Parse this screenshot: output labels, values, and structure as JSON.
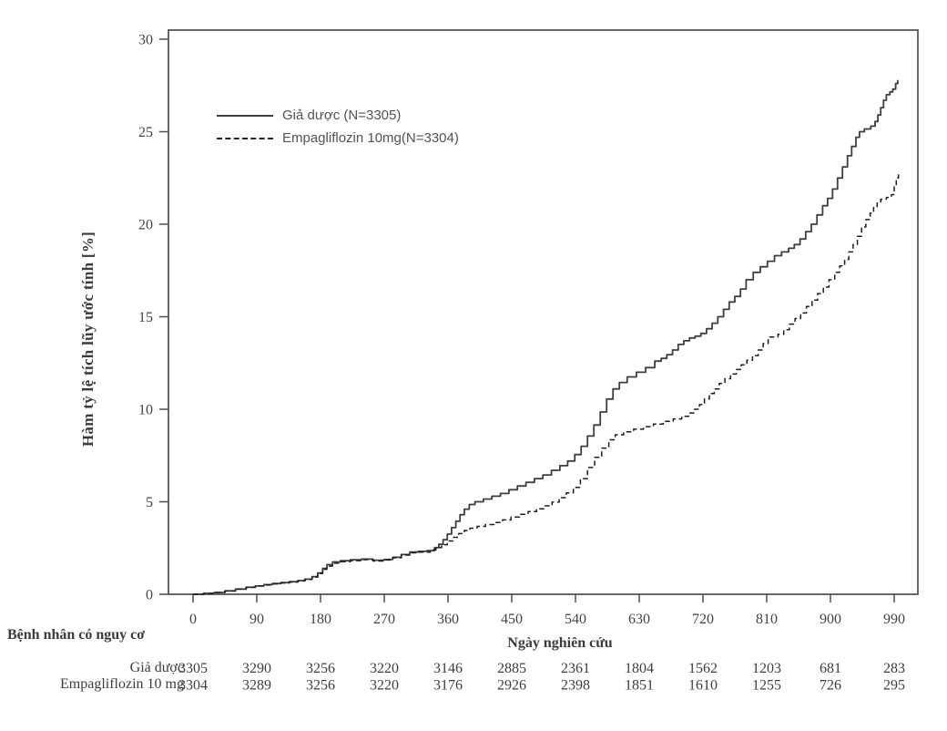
{
  "figure": {
    "background": "#ffffff",
    "axis_color": "#4e4e4e",
    "text_color": "#434343",
    "legend_text_color": "#525252"
  },
  "chart_data": {
    "type": "line",
    "subtype": "step-after (Kaplan-Meier estimated cumulative incidence)",
    "title": "",
    "xlabel": "Ngày nghiên cứu",
    "ylabel": "Hàm tỷ lệ tích lũy ước tính [%]",
    "xlim": [
      0,
      1023
    ],
    "ylim": [
      0,
      30.5
    ],
    "xticks": [
      0,
      90,
      180,
      270,
      360,
      450,
      540,
      630,
      720,
      810,
      900,
      990
    ],
    "yticks": [
      0,
      5,
      10,
      15,
      20,
      25,
      30
    ],
    "grid": false,
    "legend_position": "inside-upper-left",
    "series": [
      {
        "name": "Giả dược (N=3305)",
        "line": "solid",
        "color": "#3e3e3e",
        "points": [
          [
            0,
            0
          ],
          [
            15,
            0.05
          ],
          [
            30,
            0.1
          ],
          [
            45,
            0.18
          ],
          [
            60,
            0.28
          ],
          [
            75,
            0.38
          ],
          [
            88,
            0.45
          ],
          [
            100,
            0.52
          ],
          [
            112,
            0.58
          ],
          [
            124,
            0.63
          ],
          [
            136,
            0.68
          ],
          [
            148,
            0.74
          ],
          [
            158,
            0.82
          ],
          [
            168,
            0.95
          ],
          [
            176,
            1.15
          ],
          [
            183,
            1.4
          ],
          [
            189,
            1.6
          ],
          [
            197,
            1.75
          ],
          [
            208,
            1.82
          ],
          [
            222,
            1.86
          ],
          [
            238,
            1.9
          ],
          [
            254,
            1.84
          ],
          [
            270,
            1.88
          ],
          [
            282,
            2.0
          ],
          [
            294,
            2.15
          ],
          [
            306,
            2.28
          ],
          [
            318,
            2.32
          ],
          [
            330,
            2.36
          ],
          [
            341,
            2.52
          ],
          [
            347,
            2.7
          ],
          [
            353,
            2.95
          ],
          [
            359,
            3.25
          ],
          [
            365,
            3.6
          ],
          [
            371,
            3.95
          ],
          [
            377,
            4.3
          ],
          [
            383,
            4.6
          ],
          [
            390,
            4.85
          ],
          [
            398,
            5.0
          ],
          [
            410,
            5.15
          ],
          [
            422,
            5.3
          ],
          [
            434,
            5.45
          ],
          [
            446,
            5.65
          ],
          [
            458,
            5.85
          ],
          [
            470,
            6.05
          ],
          [
            482,
            6.25
          ],
          [
            494,
            6.45
          ],
          [
            506,
            6.7
          ],
          [
            518,
            6.95
          ],
          [
            529,
            7.2
          ],
          [
            539,
            7.55
          ],
          [
            548,
            8.0
          ],
          [
            557,
            8.55
          ],
          [
            566,
            9.15
          ],
          [
            575,
            9.85
          ],
          [
            584,
            10.55
          ],
          [
            593,
            11.1
          ],
          [
            602,
            11.45
          ],
          [
            613,
            11.75
          ],
          [
            626,
            12.0
          ],
          [
            639,
            12.25
          ],
          [
            652,
            12.6
          ],
          [
            661,
            12.75
          ],
          [
            669,
            12.95
          ],
          [
            677,
            13.2
          ],
          [
            685,
            13.5
          ],
          [
            693,
            13.7
          ],
          [
            701,
            13.85
          ],
          [
            709,
            13.95
          ],
          [
            717,
            14.1
          ],
          [
            725,
            14.35
          ],
          [
            733,
            14.65
          ],
          [
            741,
            15.0
          ],
          [
            749,
            15.4
          ],
          [
            757,
            15.8
          ],
          [
            765,
            16.1
          ],
          [
            773,
            16.5
          ],
          [
            781,
            17.0
          ],
          [
            791,
            17.4
          ],
          [
            801,
            17.7
          ],
          [
            811,
            18.0
          ],
          [
            821,
            18.3
          ],
          [
            831,
            18.5
          ],
          [
            841,
            18.7
          ],
          [
            849,
            18.9
          ],
          [
            857,
            19.2
          ],
          [
            865,
            19.6
          ],
          [
            873,
            20.0
          ],
          [
            881,
            20.5
          ],
          [
            889,
            21.0
          ],
          [
            896,
            21.4
          ],
          [
            903,
            21.9
          ],
          [
            910,
            22.5
          ],
          [
            917,
            23.1
          ],
          [
            924,
            23.7
          ],
          [
            930,
            24.2
          ],
          [
            936,
            24.7
          ],
          [
            941,
            25.0
          ],
          [
            948,
            25.15
          ],
          [
            957,
            25.3
          ],
          [
            963,
            25.55
          ],
          [
            967,
            25.9
          ],
          [
            971,
            26.3
          ],
          [
            975,
            26.7
          ],
          [
            979,
            27.0
          ],
          [
            984,
            27.15
          ],
          [
            988,
            27.3
          ],
          [
            992,
            27.6
          ],
          [
            995,
            27.8
          ]
        ]
      },
      {
        "name": "Empagliflozin 10mg(N=3304)",
        "line": "dashed",
        "color": "#1e1e1e",
        "points": [
          [
            0,
            0
          ],
          [
            15,
            0.05
          ],
          [
            30,
            0.1
          ],
          [
            45,
            0.18
          ],
          [
            60,
            0.28
          ],
          [
            75,
            0.38
          ],
          [
            88,
            0.45
          ],
          [
            100,
            0.5
          ],
          [
            112,
            0.56
          ],
          [
            124,
            0.61
          ],
          [
            136,
            0.66
          ],
          [
            148,
            0.72
          ],
          [
            158,
            0.8
          ],
          [
            168,
            0.93
          ],
          [
            176,
            1.12
          ],
          [
            183,
            1.35
          ],
          [
            189,
            1.52
          ],
          [
            197,
            1.68
          ],
          [
            208,
            1.76
          ],
          [
            222,
            1.82
          ],
          [
            238,
            1.87
          ],
          [
            254,
            1.8
          ],
          [
            270,
            1.85
          ],
          [
            282,
            1.97
          ],
          [
            294,
            2.12
          ],
          [
            306,
            2.24
          ],
          [
            318,
            2.28
          ],
          [
            335,
            2.4
          ],
          [
            343,
            2.52
          ],
          [
            351,
            2.68
          ],
          [
            359,
            2.88
          ],
          [
            367,
            3.08
          ],
          [
            375,
            3.28
          ],
          [
            383,
            3.45
          ],
          [
            391,
            3.57
          ],
          [
            401,
            3.67
          ],
          [
            413,
            3.77
          ],
          [
            425,
            3.88
          ],
          [
            437,
            4.02
          ],
          [
            449,
            4.17
          ],
          [
            461,
            4.32
          ],
          [
            473,
            4.47
          ],
          [
            485,
            4.62
          ],
          [
            497,
            4.78
          ],
          [
            507,
            4.98
          ],
          [
            517,
            5.22
          ],
          [
            527,
            5.48
          ],
          [
            537,
            5.78
          ],
          [
            547,
            6.25
          ],
          [
            557,
            6.85
          ],
          [
            567,
            7.4
          ],
          [
            577,
            7.9
          ],
          [
            587,
            8.35
          ],
          [
            596,
            8.62
          ],
          [
            608,
            8.78
          ],
          [
            622,
            8.92
          ],
          [
            636,
            9.06
          ],
          [
            650,
            9.2
          ],
          [
            664,
            9.35
          ],
          [
            678,
            9.48
          ],
          [
            690,
            9.62
          ],
          [
            700,
            9.8
          ],
          [
            708,
            10.0
          ],
          [
            715,
            10.25
          ],
          [
            722,
            10.55
          ],
          [
            729,
            10.85
          ],
          [
            736,
            11.1
          ],
          [
            743,
            11.4
          ],
          [
            751,
            11.65
          ],
          [
            759,
            11.9
          ],
          [
            767,
            12.15
          ],
          [
            774,
            12.4
          ],
          [
            782,
            12.65
          ],
          [
            790,
            12.9
          ],
          [
            798,
            13.2
          ],
          [
            805,
            13.55
          ],
          [
            812,
            13.9
          ],
          [
            826,
            14.05
          ],
          [
            834,
            14.3
          ],
          [
            842,
            14.6
          ],
          [
            850,
            14.9
          ],
          [
            858,
            15.2
          ],
          [
            866,
            15.55
          ],
          [
            874,
            15.9
          ],
          [
            882,
            16.25
          ],
          [
            890,
            16.6
          ],
          [
            898,
            17.0
          ],
          [
            906,
            17.4
          ],
          [
            913,
            17.75
          ],
          [
            920,
            18.1
          ],
          [
            926,
            18.5
          ],
          [
            932,
            18.9
          ],
          [
            938,
            19.35
          ],
          [
            944,
            19.85
          ],
          [
            950,
            20.25
          ],
          [
            956,
            20.6
          ],
          [
            961,
            20.9
          ],
          [
            966,
            21.15
          ],
          [
            971,
            21.35
          ],
          [
            979,
            21.45
          ],
          [
            986,
            21.6
          ],
          [
            990,
            22.1
          ],
          [
            993,
            22.5
          ],
          [
            996,
            22.8
          ]
        ]
      }
    ]
  },
  "risk_table": {
    "title": "Bệnh nhân có nguy cơ",
    "timepoints": [
      0,
      90,
      180,
      270,
      360,
      450,
      540,
      630,
      720,
      810,
      900,
      990
    ],
    "rows": [
      {
        "label": "Giả dược",
        "counts": [
          3305,
          3290,
          3256,
          3220,
          3146,
          2885,
          2361,
          1804,
          1562,
          1203,
          681,
          283
        ]
      },
      {
        "label": "Empagliflozin 10 mg",
        "counts": [
          3304,
          3289,
          3256,
          3220,
          3176,
          2926,
          2398,
          1851,
          1610,
          1255,
          726,
          295
        ]
      }
    ]
  }
}
